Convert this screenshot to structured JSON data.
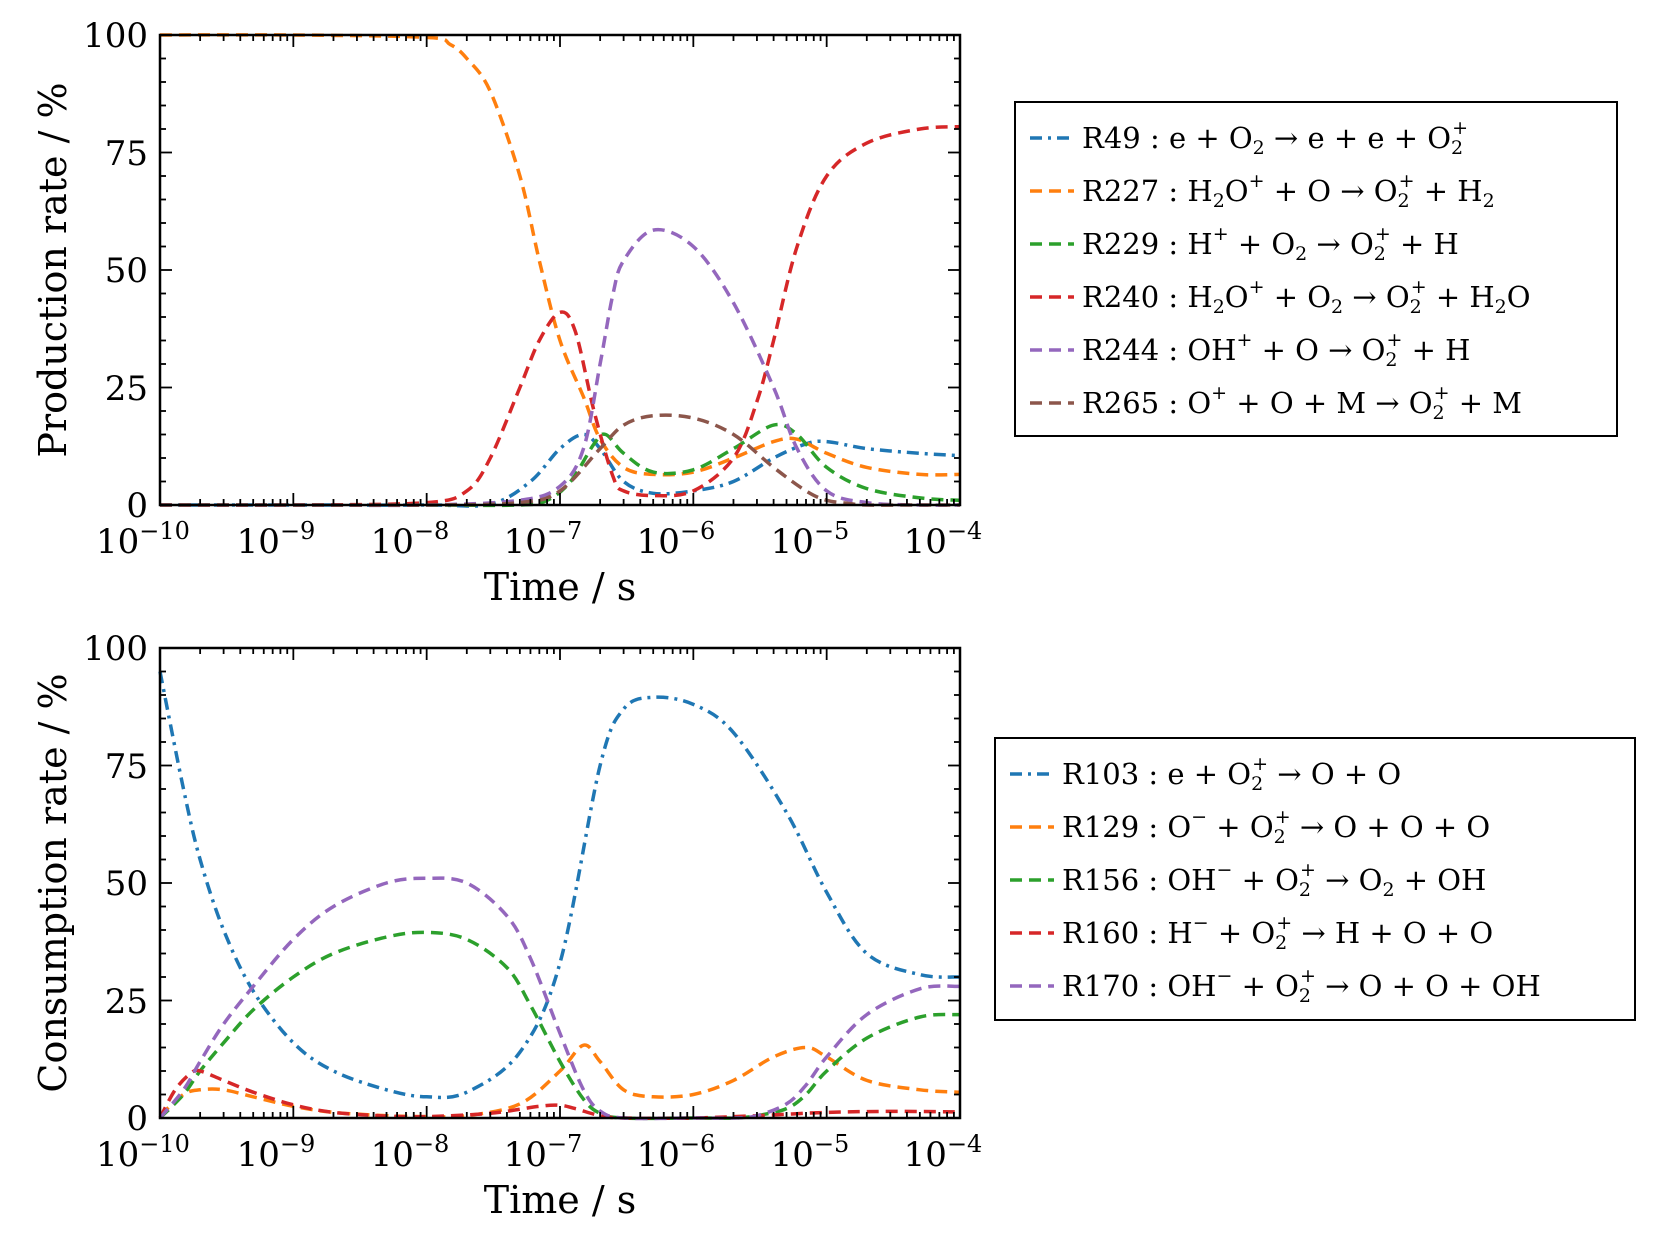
{
  "chart_data": [
    {
      "type": "line",
      "id": "top",
      "xscale": "log",
      "xlim": [
        1e-10,
        0.0001
      ],
      "ylim": [
        0,
        100
      ],
      "xlabel": "Time / s",
      "ylabel": "Production rate / %",
      "yticks": [
        "0",
        "25",
        "50",
        "75",
        "100"
      ],
      "xticks": [
        {
          "base": "10",
          "exp": "−10"
        },
        {
          "base": "10",
          "exp": "−9"
        },
        {
          "base": "10",
          "exp": "−8"
        },
        {
          "base": "10",
          "exp": "−7"
        },
        {
          "base": "10",
          "exp": "−6"
        },
        {
          "base": "10",
          "exp": "−5"
        },
        {
          "base": "10",
          "exp": "−4"
        }
      ],
      "legend_position": "right",
      "series": [
        {
          "name": "R49",
          "label": "R49 : e + O2 → e + e + O2+",
          "color": "#1f77b4",
          "style": "dashdot",
          "x": [
            1e-10,
            1e-09,
            1e-08,
            3e-08,
            6e-08,
            1e-07,
            1.5e-07,
            2e-07,
            3e-07,
            5e-07,
            1e-06,
            2e-06,
            4e-06,
            7e-06,
            1e-05,
            2e-05,
            5e-05,
            0.0001
          ],
          "y": [
            0,
            0,
            0,
            0.2,
            5,
            12,
            15,
            12,
            5,
            2.5,
            3,
            5,
            10,
            13,
            13.5,
            12,
            11,
            10.5
          ]
        },
        {
          "name": "R227",
          "label": "R227 : H2O+ + O → O2+ + H2",
          "color": "#ff7f0e",
          "style": "dashed",
          "x": [
            1e-10,
            1e-09,
            1e-08,
            1.5e-08,
            2e-08,
            3e-08,
            5e-08,
            7e-08,
            1e-07,
            1.5e-07,
            2e-07,
            3e-07,
            5e-07,
            1e-06,
            2e-06,
            4e-06,
            6e-06,
            1e-05,
            2e-05,
            5e-05,
            0.0001
          ],
          "y": [
            100,
            100,
            99.5,
            98,
            95,
            88,
            70,
            52,
            35,
            23,
            14,
            8,
            6.5,
            7,
            10,
            13.5,
            14,
            11,
            8,
            6.5,
            6.5
          ]
        },
        {
          "name": "R229",
          "label": "R229 : H+ + O2 → O2+ + H",
          "color": "#2ca02c",
          "style": "dashed",
          "x": [
            1e-10,
            1e-09,
            1e-08,
            5e-08,
            8e-08,
            1.2e-07,
            1.8e-07,
            2.2e-07,
            3e-07,
            5e-07,
            1e-06,
            2e-06,
            4e-06,
            6e-06,
            1e-05,
            2e-05,
            5e-05,
            0.0001
          ],
          "y": [
            0,
            0,
            0,
            0,
            1,
            5,
            13,
            15,
            11,
            7,
            7.5,
            12,
            17,
            15,
            8,
            3.5,
            1.5,
            1
          ]
        },
        {
          "name": "R240",
          "label": "R240 : H2O+ + O2 → O2+ + H2O",
          "color": "#d62728",
          "style": "dashed",
          "x": [
            1e-10,
            1e-09,
            1e-08,
            2e-08,
            3e-08,
            5e-08,
            7e-08,
            1e-07,
            1.3e-07,
            1.8e-07,
            2.5e-07,
            3e-07,
            5e-07,
            1e-06,
            2e-06,
            3e-06,
            4e-06,
            6e-06,
            1e-05,
            2e-05,
            5e-05,
            0.0001
          ],
          "y": [
            0,
            0,
            0.5,
            3,
            10,
            25,
            35,
            41,
            37,
            20,
            6,
            3,
            2,
            3,
            10,
            22,
            35,
            55,
            70,
            77,
            80,
            80.5
          ]
        },
        {
          "name": "R244",
          "label": "R244 : OH+ + O → O2+ + H",
          "color": "#9467bd",
          "style": "dashed",
          "x": [
            1e-10,
            1e-09,
            1e-08,
            5e-08,
            1e-07,
            1.5e-07,
            2e-07,
            2.5e-07,
            3e-07,
            5e-07,
            1e-06,
            2e-06,
            4e-06,
            6e-06,
            1e-05,
            2e-05,
            5e-05,
            0.0001
          ],
          "y": [
            0,
            0,
            0,
            1,
            4,
            12,
            30,
            45,
            52,
            58.5,
            55,
            43,
            25,
            12,
            3,
            0.5,
            0,
            0
          ]
        },
        {
          "name": "R265",
          "label": "R265 : O+ + O + M → O2+ + M",
          "color": "#8c564b",
          "style": "dashed",
          "x": [
            1e-10,
            1e-09,
            1e-08,
            5e-08,
            1e-07,
            2e-07,
            3e-07,
            5e-07,
            1e-06,
            2e-06,
            4e-06,
            7e-06,
            1e-05,
            1.5e-05,
            2e-05,
            5e-05,
            0.0001
          ],
          "y": [
            0,
            0,
            0,
            0.5,
            3,
            12,
            17,
            19,
            18.5,
            15,
            8,
            3,
            1,
            0.3,
            0,
            0,
            0
          ]
        }
      ]
    },
    {
      "type": "line",
      "id": "bottom",
      "xscale": "log",
      "xlim": [
        1e-10,
        0.0001
      ],
      "ylim": [
        0,
        100
      ],
      "xlabel": "Time / s",
      "ylabel": "Consumption rate / %",
      "yticks": [
        "0",
        "25",
        "50",
        "75",
        "100"
      ],
      "xticks": [
        {
          "base": "10",
          "exp": "−10"
        },
        {
          "base": "10",
          "exp": "−9"
        },
        {
          "base": "10",
          "exp": "−8"
        },
        {
          "base": "10",
          "exp": "−7"
        },
        {
          "base": "10",
          "exp": "−6"
        },
        {
          "base": "10",
          "exp": "−5"
        },
        {
          "base": "10",
          "exp": "−4"
        }
      ],
      "legend_position": "right",
      "series": [
        {
          "name": "R103",
          "label": "R103 : e + O2+ → O + O",
          "color": "#1f77b4",
          "style": "dashdot",
          "x": [
            1e-10,
            1.5e-10,
            2e-10,
            3e-10,
            5e-10,
            1e-09,
            2e-09,
            5e-09,
            1e-08,
            2e-08,
            5e-08,
            1e-07,
            2e-07,
            3e-07,
            5e-07,
            1e-06,
            2e-06,
            5e-06,
            1e-05,
            2e-05,
            5e-05,
            0.0001
          ],
          "y": [
            95,
            70,
            55,
            40,
            27,
            16,
            10,
            6,
            4.5,
            5.5,
            14,
            33,
            75,
            87,
            89.5,
            88,
            82,
            65,
            48,
            35,
            30.5,
            30
          ]
        },
        {
          "name": "R129",
          "label": "R129 : O− + O2+ → O + O + O",
          "color": "#ff7f0e",
          "style": "dashed",
          "x": [
            1e-10,
            1.5e-10,
            2e-10,
            3e-10,
            5e-10,
            1e-09,
            2e-09,
            5e-09,
            1e-08,
            2e-08,
            5e-08,
            1e-07,
            1.5e-07,
            2e-07,
            3e-07,
            5e-07,
            1e-06,
            2e-06,
            4e-06,
            7e-06,
            1e-05,
            2e-05,
            5e-05,
            0.0001
          ],
          "y": [
            0.5,
            5,
            6,
            6,
            4.5,
            2.5,
            1.2,
            0.5,
            0.3,
            0.5,
            3,
            10,
            15.5,
            12,
            6,
            4.5,
            5,
            8,
            13,
            15,
            13,
            8,
            6,
            5.5
          ]
        },
        {
          "name": "R156",
          "label": "R156 : OH− + O2+ → O2 + OH",
          "color": "#2ca02c",
          "style": "dashed",
          "x": [
            1e-10,
            1.5e-10,
            2e-10,
            3e-10,
            5e-10,
            1e-09,
            2e-09,
            5e-09,
            1e-08,
            2e-08,
            4e-08,
            6e-08,
            1e-07,
            1.5e-07,
            2e-07,
            3e-07,
            1e-06,
            2e-06,
            3e-06,
            5e-06,
            7e-06,
            1e-05,
            2e-05,
            5e-05,
            0.0001
          ],
          "y": [
            0,
            5,
            10,
            16,
            23,
            30,
            35,
            38.5,
            39.5,
            38,
            32,
            24,
            12,
            4,
            1,
            0,
            0,
            0,
            0.5,
            2,
            5,
            10,
            17,
            21.5,
            22
          ]
        },
        {
          "name": "R160",
          "label": "R160 : H− + O2+ → H + O + O",
          "color": "#d62728",
          "style": "dashed",
          "x": [
            1e-10,
            1.3e-10,
            1.7e-10,
            2e-10,
            3e-10,
            5e-10,
            1e-09,
            2e-09,
            5e-09,
            1e-08,
            3e-08,
            7e-08,
            1e-07,
            1.3e-07,
            2e-07,
            3e-07,
            1e-06,
            3e-06,
            1e-05,
            3e-05,
            0.0001
          ],
          "y": [
            0,
            6,
            9.5,
            10,
            8,
            5.5,
            2.8,
            1.2,
            0.4,
            0.3,
            1,
            2.5,
            2.7,
            2,
            0.5,
            0,
            0,
            0.5,
            1.2,
            1.4,
            1.3
          ]
        },
        {
          "name": "R170",
          "label": "R170 : OH− + O2+ → O + O + OH",
          "color": "#9467bd",
          "style": "dashed",
          "x": [
            1e-10,
            1.5e-10,
            2e-10,
            3e-10,
            5e-10,
            1e-09,
            2e-09,
            5e-09,
            1e-08,
            2e-08,
            4e-08,
            6e-08,
            1e-07,
            1.5e-07,
            2e-07,
            3e-07,
            1e-06,
            2e-06,
            3e-06,
            5e-06,
            7e-06,
            1e-05,
            2e-05,
            5e-05,
            0.0001
          ],
          "y": [
            0,
            6,
            12,
            20,
            28,
            38,
            45,
            50,
            51,
            50,
            43,
            34,
            18,
            6,
            1.5,
            0,
            0,
            0,
            0.5,
            3,
            7,
            13,
            22,
            27.5,
            28
          ]
        }
      ]
    }
  ]
}
